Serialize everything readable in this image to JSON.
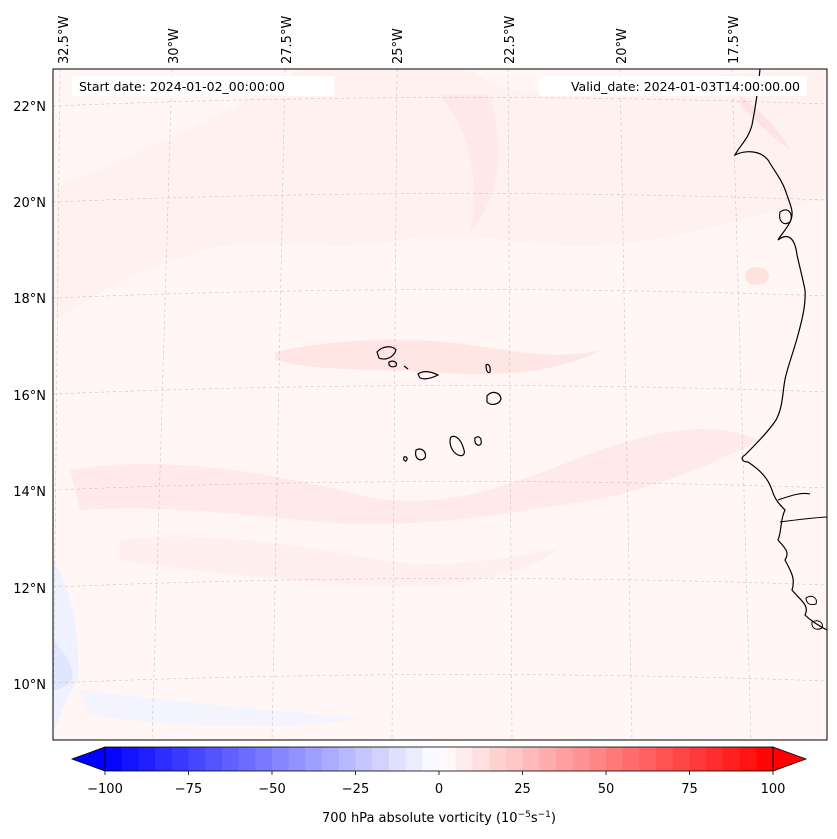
{
  "map": {
    "start_date": "Start date: 2024-01-02_00:00:00",
    "valid_date": "Valid_date: 2024-01-03T14:00:00.00",
    "lon_labels": [
      "32.5°W",
      "30°W",
      "27.5°W",
      "25°W",
      "22.5°W",
      "20°W",
      "17.5°W"
    ],
    "lat_labels": [
      "22°N",
      "20°N",
      "18°N",
      "16°N",
      "14°N",
      "12°N",
      "10°N"
    ],
    "field": "700 hPa absolute vorticity",
    "cmap": "bwr"
  },
  "colorbar": {
    "label": "700 hPa absolute vorticity (10",
    "exp1": "−5",
    "mid": "s",
    "exp2": "−1",
    "close": ")",
    "ticks": [
      "−100",
      "−75",
      "−50",
      "−25",
      "0",
      "25",
      "50",
      "75",
      "100"
    ],
    "vmin": -100,
    "vmax": 100,
    "step": 5,
    "neg_color": "#0000ff",
    "mid_color": "#ffffff",
    "pos_color": "#ff0000"
  }
}
